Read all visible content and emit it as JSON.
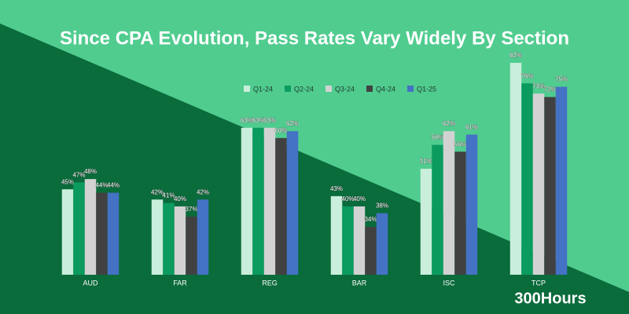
{
  "chart_data": {
    "type": "bar",
    "title": "Since CPA Evolution, Pass Rates Vary Widely By Section",
    "brand": "300Hours",
    "categories": [
      "AUD",
      "FAR",
      "REG",
      "BAR",
      "ISC",
      "TCP"
    ],
    "series": [
      {
        "name": "Q1-24",
        "color": "#c9eedb",
        "values": [
          45,
          42,
          63,
          43,
          51,
          82
        ],
        "value_labels": [
          "45%",
          "42%",
          "63%",
          "43%",
          "51%",
          "82%"
        ]
      },
      {
        "name": "Q2-24",
        "color": "#0b9b5f",
        "values": [
          47,
          41,
          63,
          40,
          58,
          76
        ],
        "value_labels": [
          "47%",
          "41%",
          "63%",
          "40%",
          "58%",
          "76%"
        ]
      },
      {
        "name": "Q3-24",
        "color": "#d2d2d2",
        "values": [
          48,
          40,
          63,
          40,
          62,
          73
        ],
        "value_labels": [
          "48%",
          "40%",
          "63%",
          "40%",
          "62%",
          "73%"
        ]
      },
      {
        "name": "Q4-24",
        "color": "#414141",
        "values": [
          44,
          37,
          60,
          34,
          56,
          72
        ],
        "value_labels": [
          "44%",
          "37%",
          "60%",
          "34%",
          "56%",
          "72%"
        ]
      },
      {
        "name": "Q1-25",
        "color": "#4472c4",
        "values": [
          44,
          42,
          62,
          38,
          61,
          75
        ],
        "value_labels": [
          "44%",
          "42%",
          "62%",
          "38%",
          "61%",
          "75%"
        ]
      }
    ],
    "ylim": [
      20,
      85
    ],
    "legend": "top"
  }
}
